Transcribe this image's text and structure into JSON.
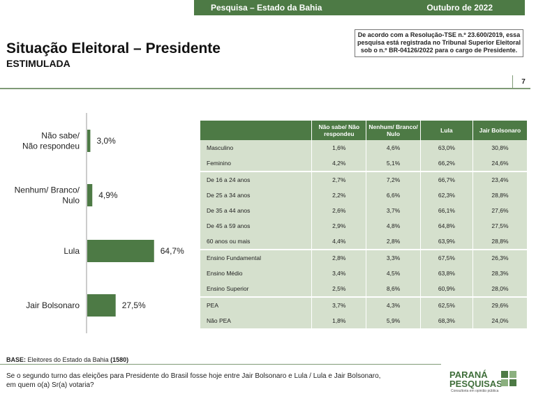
{
  "header": {
    "left": "Pesquisa – Estado da Bahia",
    "right": "Outubro de 2022"
  },
  "title": "Situação Eleitoral – Presidente",
  "subtitle": "ESTIMULADA",
  "notice": {
    "line1": "De acordo com a Resolução-TSE n.º 23.600/2019, essa",
    "line2": "pesquisa está registrada no Tribunal Superior Eleitoral",
    "line3": "sob o n.º BR-04126/2022 para o cargo de Presidente."
  },
  "page_number": "7",
  "colors": {
    "bar": "#4d7a45",
    "header_bg": "#4d7a45",
    "row_bg": "#d5e0cd"
  },
  "chart_data": {
    "type": "bar",
    "orientation": "horizontal",
    "categories": [
      [
        "Não sabe/",
        "Não respondeu"
      ],
      [
        "Nenhum/ Branco/",
        "Nulo"
      ],
      [
        "Lula"
      ],
      [
        "Jair Bolsonaro"
      ]
    ],
    "values": [
      3.0,
      4.9,
      64.7,
      27.5
    ],
    "value_labels": [
      "3,0%",
      "4,9%",
      "64,7%",
      "27,5%"
    ],
    "xlim": [
      0,
      100
    ]
  },
  "table": {
    "columns": [
      "",
      "Não sabe/ Não respondeu",
      "Nenhum/ Branco/ Nulo",
      "Lula",
      "Jair Bolsonaro"
    ],
    "rows": [
      [
        "Masculino",
        "1,6%",
        "4,6%",
        "63,0%",
        "30,8%"
      ],
      [
        "Feminino",
        "4,2%",
        "5,1%",
        "66,2%",
        "24,6%"
      ],
      [
        "De 16 a 24 anos",
        "2,7%",
        "7,2%",
        "66,7%",
        "23,4%"
      ],
      [
        "De 25 a 34 anos",
        "2,2%",
        "6,6%",
        "62,3%",
        "28,8%"
      ],
      [
        "De 35 a 44 anos",
        "2,6%",
        "3,7%",
        "66,1%",
        "27,6%"
      ],
      [
        "De 45 a 59 anos",
        "2,9%",
        "4,8%",
        "64,8%",
        "27,5%"
      ],
      [
        "60 anos ou mais",
        "4,4%",
        "2,8%",
        "63,9%",
        "28,8%"
      ],
      [
        "Ensino Fundamental",
        "2,8%",
        "3,3%",
        "67,5%",
        "26,3%"
      ],
      [
        "Ensino Médio",
        "3,4%",
        "4,5%",
        "63,8%",
        "28,3%"
      ],
      [
        "Ensino Superior",
        "2,5%",
        "8,6%",
        "60,9%",
        "28,0%"
      ],
      [
        "PEA",
        "3,7%",
        "4,3%",
        "62,5%",
        "29,6%"
      ],
      [
        "Não PEA",
        "1,8%",
        "5,9%",
        "68,3%",
        "24,0%"
      ]
    ]
  },
  "base": {
    "label": "BASE:",
    "text": "Eleitores do Estado da Bahia",
    "count": "(1580)"
  },
  "question": {
    "line1": "Se o segundo turno das eleições para Presidente do Brasil fosse hoje entre Jair Bolsonaro e Lula / Lula e Jair Bolsonaro,",
    "line2": "em quem o(a) Sr(a) votaria?"
  },
  "logo": {
    "line1": "PARANÁ",
    "line2": "PESQUISAS",
    "tagline": "Consultoria em opinião pública"
  }
}
